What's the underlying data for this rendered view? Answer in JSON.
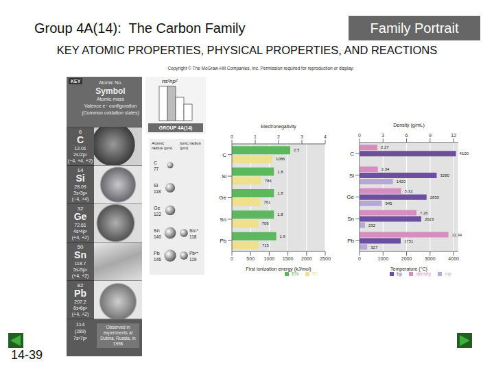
{
  "slide": {
    "title": "Group 4A(14):  The Carbon Family",
    "badge": "Family Portrait",
    "subtitle": "KEY ATOMIC PROPERTIES, PHYSICAL PROPERTIES, AND REACTIONS",
    "copyright": "Copyright © The McGraw-Hill Companies, Inc. Permission required for reproduction or display.",
    "page": "14-39"
  },
  "key": {
    "label": "KEY",
    "lines": [
      "Atomic No.",
      "Symbol",
      "Atomic mass",
      "Valence e⁻ configuration",
      "(Common oxidation states)"
    ]
  },
  "elements": [
    {
      "number": 6,
      "symbol": "C",
      "mass": 12.01,
      "config": "2s²2p²",
      "states": "(−4, +4, +2)"
    },
    {
      "number": 14,
      "symbol": "Si",
      "mass": 28.09,
      "config": "3s²3p²",
      "states": "(−4, +4)"
    },
    {
      "number": 32,
      "symbol": "Ge",
      "mass": 72.61,
      "config": "4s²4p²",
      "states": "(+4, +2)"
    },
    {
      "number": 50,
      "symbol": "Sn",
      "mass": 118.7,
      "config": "5s²5p²",
      "states": "(+4, +2)"
    },
    {
      "number": 82,
      "symbol": "Pb",
      "mass": 207.2,
      "config": "6s²6p²",
      "states": "(+4, +2)"
    }
  ],
  "superheavy": {
    "number": 114,
    "mass": "(289)",
    "config": "7s²7p²",
    "note": "Observed in experiments at Dubna, Russia, in 1998"
  },
  "group": {
    "config": "ns²np²",
    "label": "GROUP 4A(14)"
  },
  "radii": {
    "atomic_label": "Atomic radius (pm)",
    "ionic_label": "Ionic radius (pm)",
    "rows": [
      {
        "symbol": "C",
        "atomic": 77
      },
      {
        "symbol": "Si",
        "atomic": 118
      },
      {
        "symbol": "Ge",
        "atomic": 122
      },
      {
        "symbol": "Sn",
        "atomic": 140,
        "ion": "Sn²⁺",
        "ionic": 118
      },
      {
        "symbol": "Pb",
        "atomic": 146,
        "ion": "Pb²⁺",
        "ionic": 119
      }
    ]
  },
  "chart_data": [
    {
      "type": "bar",
      "orientation": "horizontal",
      "categories": [
        "C",
        "Si",
        "Ge",
        "Sn",
        "Pb"
      ],
      "series": [
        {
          "name": "EN",
          "color": "#5cb85c",
          "values": [
            2.5,
            1.8,
            1.8,
            1.8,
            1.9
          ],
          "axis": "y2"
        },
        {
          "name": "IE₁",
          "color": "#efe08e",
          "values": [
            1086,
            786,
            761,
            708,
            715
          ]
        }
      ],
      "ylabel": "First ionization energy (kJ/mol)",
      "ylim": [
        0,
        2500
      ],
      "yticks": [
        0,
        500,
        1000,
        1500,
        2000,
        2500
      ],
      "y2label": "Electronegativity",
      "y2lim": [
        0,
        4
      ],
      "y2ticks": [
        0,
        1,
        2,
        3,
        4
      ],
      "grid": true,
      "data_labels": true,
      "legend": "lower right"
    },
    {
      "type": "bar",
      "orientation": "horizontal",
      "categories": [
        "C",
        "Si",
        "Ge",
        "Sn",
        "Pb"
      ],
      "series": [
        {
          "name": "density",
          "color": "#d98cc0",
          "values": [
            2.27,
            2.34,
            5.32,
            7.26,
            11.34
          ],
          "axis": "y2"
        },
        {
          "name": "bp",
          "color": "#6b4fa0",
          "values": [
            4100,
            3280,
            2850,
            2623,
            1751
          ]
        },
        {
          "name": "mp",
          "color": "#b7a7d9",
          "values": [
            null,
            1420,
            945,
            232,
            327
          ]
        }
      ],
      "ylabel": "Temperature (°C)",
      "ylim": [
        0,
        4200
      ],
      "yticks": [
        0,
        1000,
        2000,
        3000,
        4000
      ],
      "y2label": "Density (g/mL)",
      "y2lim": [
        0,
        12.6
      ],
      "y2ticks": [
        0,
        3,
        6,
        9,
        12
      ],
      "grid": true,
      "data_labels": true,
      "legend": "lower right"
    }
  ]
}
